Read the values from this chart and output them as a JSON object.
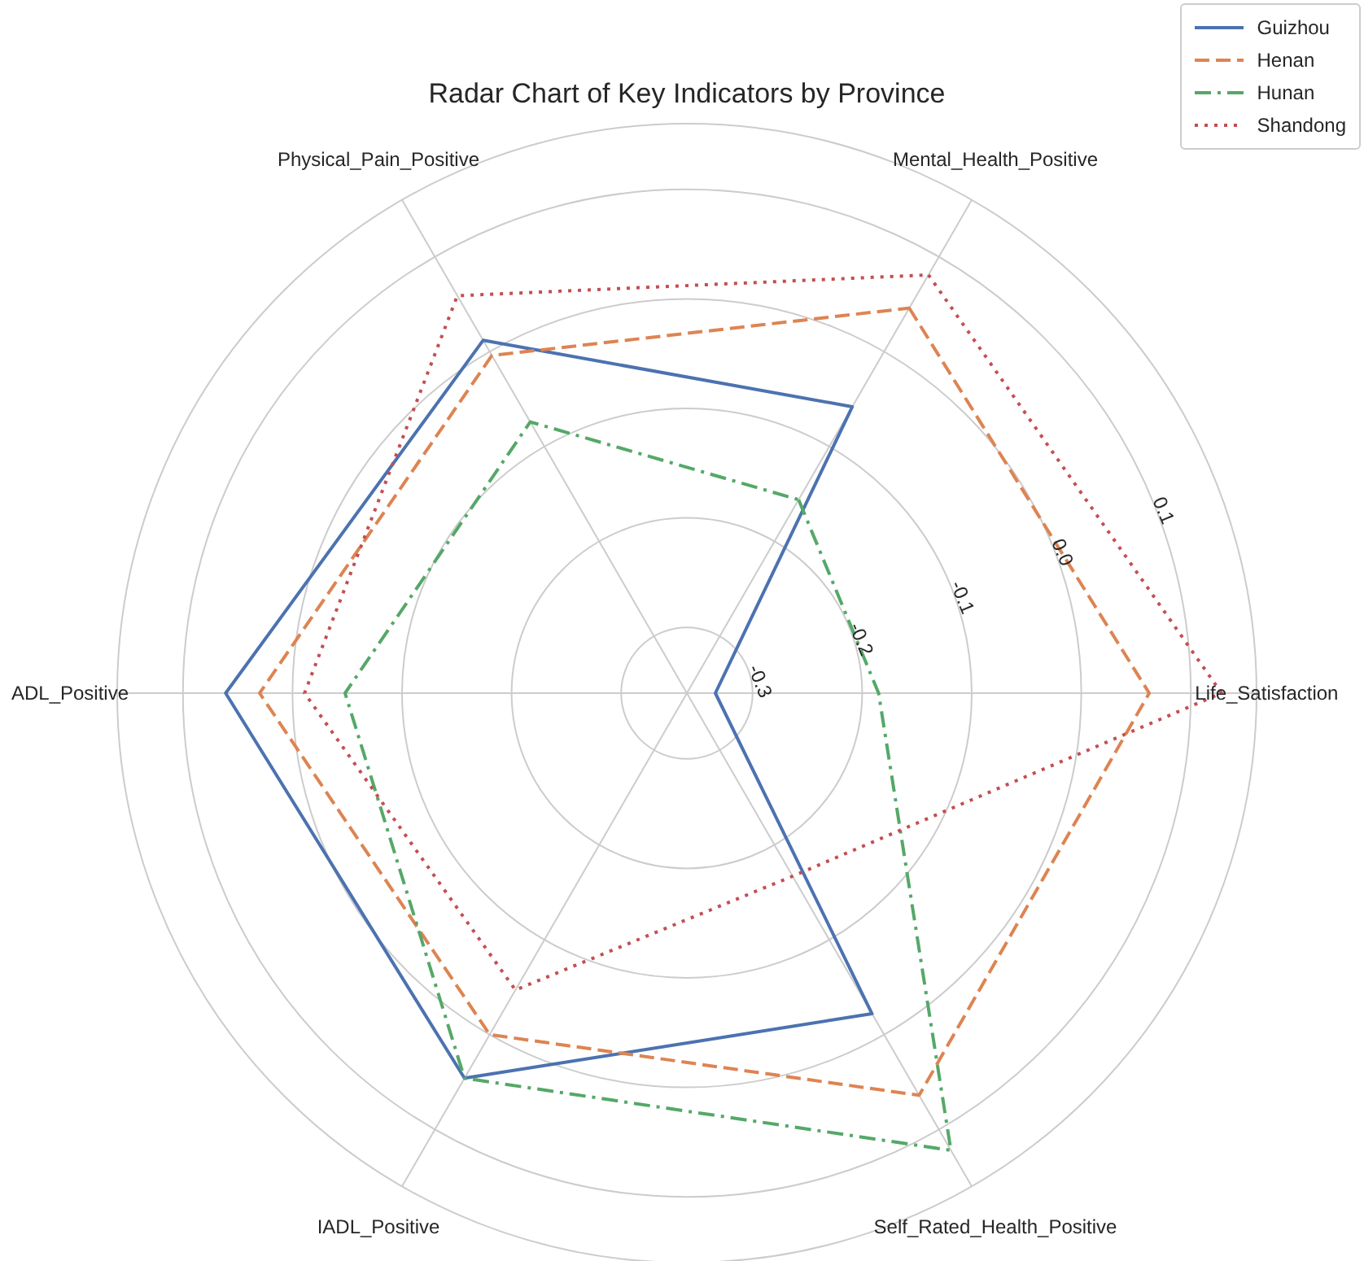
{
  "chart_data": {
    "type": "radar",
    "title": "Radar Chart of Key Indicators by Province",
    "categories": [
      "Mental_Health_Positive",
      "Life_Satisfaction",
      "Self_Rated_Health_Positive",
      "IADL_Positive",
      "ADL_Positive",
      "Physical_Pain_Positive"
    ],
    "series": [
      {
        "name": "Guizhou",
        "color": "#4c72b0",
        "line_style": "solid",
        "values": [
          -0.058,
          -0.334,
          -0.022,
          0.046,
          0.061,
          0.012
        ]
      },
      {
        "name": "Henan",
        "color": "#dd8452",
        "line_style": "dashed",
        "values": [
          0.046,
          0.062,
          0.064,
          0.0,
          0.03,
          -0.004
        ]
      },
      {
        "name": "Hunan",
        "color": "#55a868",
        "line_style": "dashdot",
        "values": [
          -0.156,
          -0.185,
          0.122,
          0.046,
          -0.048,
          -0.074
        ]
      },
      {
        "name": "Shandong",
        "color": "#c44e52",
        "line_style": "dotted",
        "values": [
          0.081,
          0.128,
          -0.167,
          -0.047,
          -0.011,
          0.059
        ]
      }
    ],
    "ylim": [
      -0.36,
      0.16
    ],
    "yticks": [
      -0.3,
      -0.2,
      -0.1,
      {
        "value": 0,
        "label": "0.0"
      },
      0.1
    ],
    "grid": true,
    "legend": "top right"
  }
}
